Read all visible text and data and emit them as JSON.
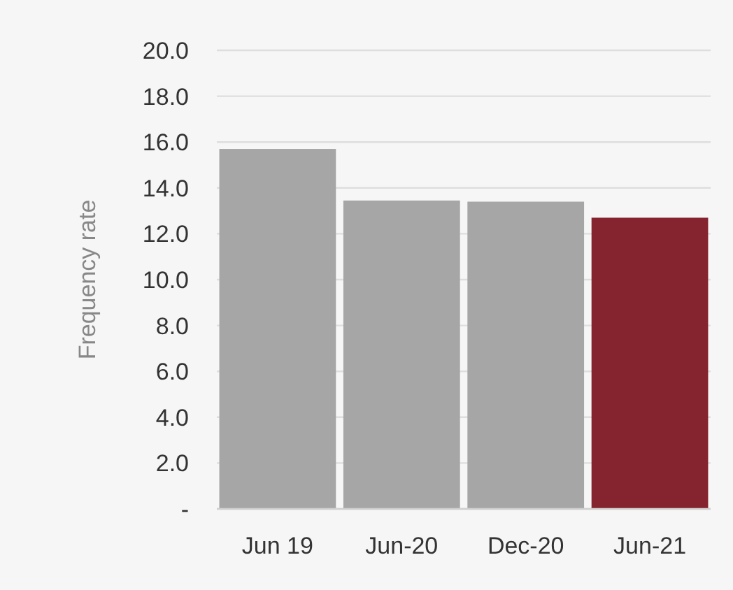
{
  "chart_data": {
    "type": "bar",
    "ylabel": "Frequency rate",
    "categories": [
      "Jun 19",
      "Jun-20",
      "Dec-20",
      "Jun-21"
    ],
    "values": [
      15.7,
      13.45,
      13.4,
      12.7
    ],
    "colors": [
      "#a6a6a6",
      "#a6a6a6",
      "#a6a6a6",
      "#85232f"
    ],
    "ylim": [
      0,
      20
    ],
    "yticks": [
      {
        "value": 0,
        "label": "-"
      },
      {
        "value": 2,
        "label": "2.0"
      },
      {
        "value": 4,
        "label": "4.0"
      },
      {
        "value": 6,
        "label": "6.0"
      },
      {
        "value": 8,
        "label": "8.0"
      },
      {
        "value": 10,
        "label": "10.0"
      },
      {
        "value": 12,
        "label": "12.0"
      },
      {
        "value": 14,
        "label": "14.0"
      },
      {
        "value": 16,
        "label": "16.0"
      },
      {
        "value": 18,
        "label": "18.0"
      },
      {
        "value": 20,
        "label": "20.0"
      }
    ],
    "grid": "y"
  }
}
